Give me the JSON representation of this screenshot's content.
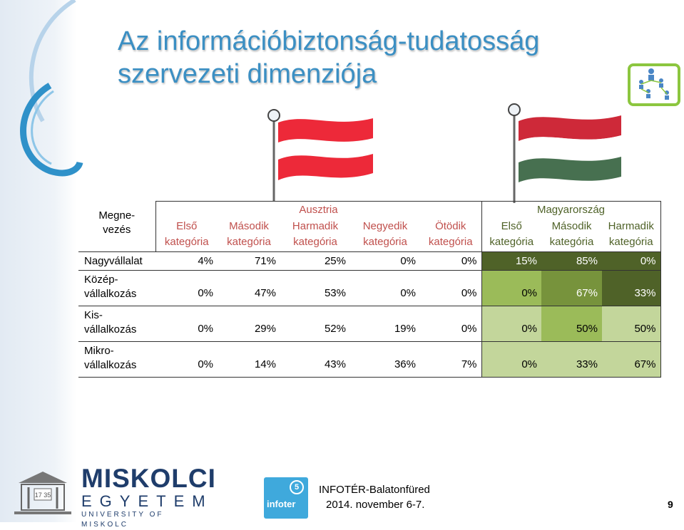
{
  "slide": {
    "title_line1": "Az információbiztonság-tudatosság",
    "title_line2": "szervezeti dimenziója",
    "page_number": "9"
  },
  "table": {
    "corner_label_line1": "Megne-",
    "corner_label_line2": "vezés",
    "austria_label": "Ausztria",
    "hungary_label": "Magyarország",
    "col_headers": [
      {
        "line1": "Első",
        "line2": "kategória",
        "group": "at"
      },
      {
        "line1": "Második",
        "line2": "kategória",
        "group": "at"
      },
      {
        "line1": "Harmadik",
        "line2": "kategória",
        "group": "at"
      },
      {
        "line1": "Negyedik",
        "line2": "kategória",
        "group": "at"
      },
      {
        "line1": "Ötödik",
        "line2": "kategória",
        "group": "at"
      },
      {
        "line1": "Első",
        "line2": "kategória",
        "group": "hu"
      },
      {
        "line1": "Második",
        "line2": "kategória",
        "group": "hu"
      },
      {
        "line1": "Harmadik",
        "line2": "kategória",
        "group": "hu"
      }
    ],
    "rows": [
      {
        "label_line1": "Nagyvállalat",
        "label_line2": "",
        "values": [
          "4%",
          "71%",
          "25%",
          "0%",
          "0%",
          "15%",
          "85%",
          "0%"
        ]
      },
      {
        "label_line1": "Közép-",
        "label_line2": "vállalkozás",
        "values": [
          "0%",
          "47%",
          "53%",
          "0%",
          "0%",
          "0%",
          "67%",
          "33%"
        ]
      },
      {
        "label_line1": "Kis-",
        "label_line2": "vállalkozás",
        "values": [
          "0%",
          "29%",
          "52%",
          "19%",
          "0%",
          "0%",
          "50%",
          "50%"
        ]
      },
      {
        "label_line1": "Mikro-",
        "label_line2": "vállalkozás",
        "values": [
          "0%",
          "14%",
          "43%",
          "36%",
          "7%",
          "0%",
          "33%",
          "67%"
        ]
      }
    ]
  },
  "footer": {
    "univ_name": "MISKOLCI",
    "univ_sub": "EGYETEM",
    "univ_en": "UNIVERSITY OF MISKOLC",
    "seal_text": "17 35",
    "infoter_logo_text": "infoter",
    "infoter_badge": "5",
    "event_name": "INFOTÉR-Balatonfüred",
    "event_date": "2014. november 6-7."
  },
  "colors": {
    "title": "#3b8fc3",
    "austria_header": "#c0504d",
    "hungary_header": "#4f6228",
    "hu_row_dark": "#4f6228",
    "hu_row_light": "#c3d69b",
    "hu_row_mid": "#9bbb59",
    "hu_row_med": "#77933c"
  }
}
